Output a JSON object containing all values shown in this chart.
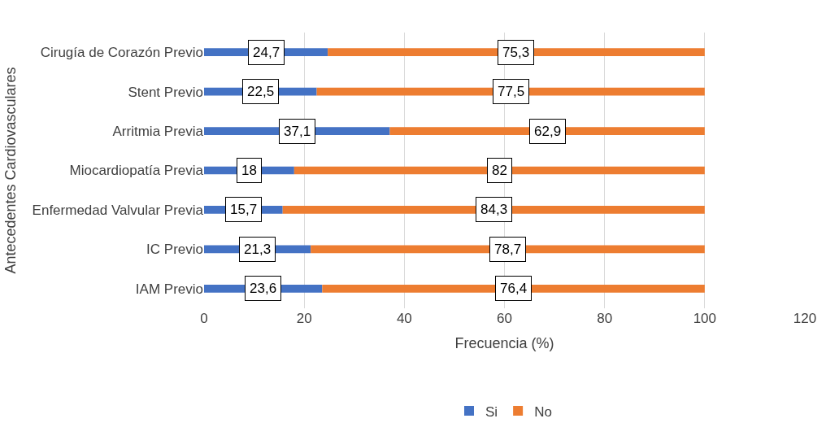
{
  "chart_data": {
    "type": "bar",
    "orientation": "horizontal",
    "stacked": true,
    "xlabel": "Frecuencia (%)",
    "ylabel": "Antecedentes Cardiovasculares",
    "categories": [
      "Cirugía de Corazón Previo",
      "Stent Previo",
      "Arritmia Previa",
      "Miocardiopatía Previa",
      "Enfermedad Valvular Previa",
      "IC Previo",
      "IAM Previo"
    ],
    "series": [
      {
        "name": "Si",
        "color": "#4472c4",
        "values": [
          24.7,
          22.5,
          37.1,
          18,
          15.7,
          21.3,
          23.6
        ],
        "value_labels": [
          "24,7",
          "22,5",
          "37,1",
          "18",
          "15,7",
          "21,3",
          "23,6"
        ]
      },
      {
        "name": "No",
        "color": "#ed7d31",
        "values": [
          75.3,
          77.5,
          62.9,
          82,
          84.3,
          78.7,
          76.4
        ],
        "value_labels": [
          "75,3",
          "77,5",
          "62,9",
          "82",
          "84,3",
          "78,7",
          "76,4"
        ]
      }
    ],
    "xlim": [
      0,
      120
    ],
    "xticks": [
      0,
      20,
      40,
      60,
      80,
      100,
      120
    ],
    "grid": "x",
    "legend": "bottom"
  }
}
